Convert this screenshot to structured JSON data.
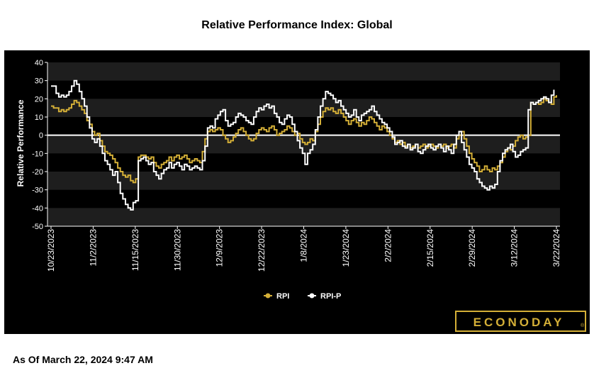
{
  "chart_data": {
    "type": "line",
    "title": "Relative Performance Index: Global",
    "ylabel": "Relative Performance",
    "xlabel": "",
    "ylim": [
      -50,
      40
    ],
    "yticks": [
      40,
      30,
      20,
      10,
      0,
      -10,
      -20,
      -30,
      -40,
      -50
    ],
    "xtick_labels": [
      "10/23/2023",
      "11/2/2023",
      "11/15/2023",
      "11/30/2023",
      "12/9/2023",
      "12/22/2023",
      "1/8/2024",
      "1/23/2024",
      "2/2/2024",
      "2/15/2024",
      "2/29/2024",
      "3/12/2024",
      "3/22/2024"
    ],
    "grid": "alternating horizontal bands",
    "legend_position": "bottom-center",
    "series": [
      {
        "name": "RPI",
        "color": "#d4af37",
        "values": [
          16,
          15,
          15,
          13,
          14,
          13,
          14,
          15,
          17,
          19,
          18,
          16,
          14,
          12,
          8,
          6,
          2,
          0,
          1,
          -3,
          -6,
          -9,
          -10,
          -11,
          -13,
          -15,
          -18,
          -20,
          -22,
          -23,
          -22,
          -25,
          -26,
          -24,
          -12,
          -11,
          -11,
          -12,
          -13,
          -12,
          -15,
          -17,
          -18,
          -16,
          -15,
          -14,
          -12,
          -14,
          -12,
          -11,
          -13,
          -12,
          -11,
          -13,
          -15,
          -14,
          -13,
          -14,
          -15,
          -9,
          -2,
          2,
          3,
          2,
          3,
          4,
          3,
          0,
          -2,
          -4,
          -3,
          -1,
          1,
          3,
          4,
          2,
          0,
          -2,
          -3,
          -2,
          1,
          3,
          4,
          3,
          2,
          4,
          5,
          3,
          0,
          1,
          2,
          3,
          5,
          4,
          2,
          0,
          1,
          -2,
          -4,
          -5,
          -4,
          -2,
          -3,
          2,
          6,
          10,
          13,
          15,
          14,
          15,
          13,
          12,
          14,
          12,
          10,
          8,
          6,
          8,
          9,
          7,
          5,
          7,
          6,
          8,
          10,
          9,
          7,
          5,
          3,
          5,
          4,
          2,
          0,
          -2,
          -4,
          -3,
          -5,
          -4,
          -6,
          -5,
          -7,
          -6,
          -5,
          -7,
          -6,
          -5,
          -7,
          -6,
          -5,
          -6,
          -7,
          -5,
          -6,
          -5,
          -7,
          -6,
          -5,
          -7,
          -2,
          0,
          2,
          -2,
          -6,
          -10,
          -13,
          -15,
          -17,
          -20,
          -19,
          -17,
          -19,
          -20,
          -18,
          -19,
          -17,
          -15,
          -12,
          -9,
          -7,
          -8,
          -6,
          -3,
          -1,
          0,
          -2,
          -1,
          0,
          18,
          17,
          18,
          17,
          18,
          20,
          19,
          18,
          17,
          21,
          22
        ]
      },
      {
        "name": "RPI-P",
        "color": "#ffffff",
        "values": [
          27,
          27,
          23,
          21,
          22,
          21,
          22,
          24,
          27,
          30,
          28,
          24,
          20,
          16,
          10,
          4,
          -2,
          -4,
          -2,
          -6,
          -10,
          -14,
          -16,
          -19,
          -22,
          -20,
          -26,
          -32,
          -35,
          -38,
          -40,
          -41,
          -37,
          -36,
          -14,
          -13,
          -12,
          -14,
          -16,
          -15,
          -20,
          -22,
          -24,
          -21,
          -19,
          -18,
          -15,
          -18,
          -16,
          -15,
          -17,
          -19,
          -16,
          -17,
          -19,
          -18,
          -17,
          -18,
          -19,
          -14,
          -6,
          4,
          5,
          4,
          9,
          11,
          13,
          14,
          8,
          5,
          6,
          7,
          10,
          12,
          11,
          10,
          8,
          7,
          6,
          10,
          13,
          15,
          14,
          16,
          17,
          15,
          16,
          12,
          10,
          7,
          6,
          9,
          11,
          10,
          6,
          2,
          -3,
          -7,
          -10,
          -16,
          -10,
          -8,
          -5,
          3,
          10,
          16,
          20,
          24,
          23,
          22,
          20,
          18,
          19,
          16,
          14,
          12,
          10,
          11,
          14,
          10,
          8,
          11,
          12,
          13,
          14,
          16,
          13,
          11,
          9,
          7,
          6,
          4,
          2,
          -1,
          -5,
          -4,
          -3,
          -6,
          -7,
          -5,
          -8,
          -7,
          -5,
          -9,
          -10,
          -8,
          -6,
          -5,
          -7,
          -8,
          -6,
          -5,
          -7,
          -9,
          -6,
          -8,
          -10,
          -5,
          0,
          2,
          -4,
          -8,
          -12,
          -16,
          -18,
          -20,
          -24,
          -26,
          -28,
          -29,
          -30,
          -28,
          -29,
          -27,
          -20,
          -14,
          -10,
          -8,
          -7,
          -5,
          -9,
          -12,
          -11,
          -9,
          -8,
          -7,
          14,
          18,
          17,
          18,
          19,
          20,
          21,
          20,
          18,
          22,
          25
        ]
      }
    ]
  },
  "footer": {
    "as_of": "As Of March 22, 2024 9:47 AM"
  },
  "brand": {
    "logo_text": "ECONODAY",
    "logo_mark": "®"
  }
}
